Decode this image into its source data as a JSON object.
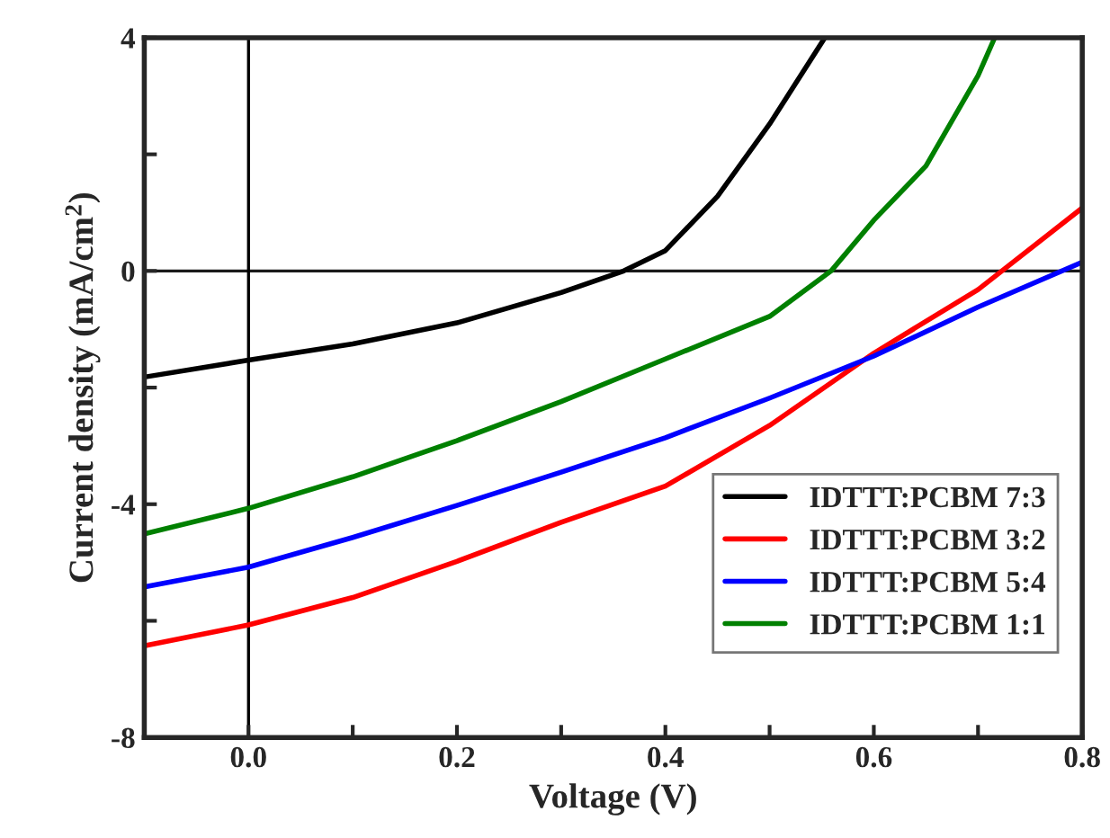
{
  "chart_data": {
    "type": "line",
    "xlabel": "Voltage (V)",
    "ylabel": "Current density (mA/cm$^{2}$)",
    "xlim": [
      -0.1,
      0.8
    ],
    "ylim": [
      -8,
      4
    ],
    "xticks": [
      {
        "value": -0.1,
        "label": null
      },
      {
        "value": 0,
        "label": "0.0"
      },
      {
        "value": 0.1,
        "label": null
      },
      0.2,
      {
        "value": 0.3,
        "label": null
      },
      0.4,
      {
        "value": 0.5,
        "label": null
      },
      0.6,
      {
        "value": 0.7,
        "label": null
      },
      0.8
    ],
    "yticks": [
      -8,
      {
        "value": -6,
        "label": null
      },
      -4,
      {
        "value": -2,
        "label": null
      },
      0,
      {
        "value": 2,
        "label": null
      },
      4
    ],
    "ref_lines": [
      {
        "axis": "y",
        "value": 0,
        "color": "#1a1a1a"
      },
      {
        "axis": "x",
        "value": 0,
        "color": "#000000"
      }
    ],
    "legend": "bottom right",
    "grid": false,
    "marker": "none",
    "line_style": "solid",
    "series": [
      {
        "name": "IDTTT:PCBM 7:3",
        "color": "#000000",
        "x": [
          -0.1,
          0,
          0.1,
          0.2,
          0.3,
          0.36,
          0.4,
          0.45,
          0.5,
          0.553
        ],
        "values": [
          -1.82,
          -1.53,
          -1.25,
          -0.89,
          -0.37,
          0,
          0.35,
          1.28,
          2.52,
          4
        ]
      },
      {
        "name": "IDTTT:PCBM 3:2",
        "color": "#ff0000",
        "x": [
          -0.1,
          0,
          0.1,
          0.2,
          0.3,
          0.4,
          0.5,
          0.6,
          0.7,
          0.8
        ],
        "values": [
          -6.43,
          -6.07,
          -5.6,
          -4.98,
          -4.31,
          -3.69,
          -2.65,
          -1.41,
          -0.32,
          1.08
        ]
      },
      {
        "name": "IDTTT:PCBM 5:4",
        "color": "#0000ff",
        "x": [
          -0.1,
          0,
          0.1,
          0.2,
          0.3,
          0.4,
          0.5,
          0.6,
          0.7,
          0.8
        ],
        "values": [
          -5.42,
          -5.08,
          -4.57,
          -4.02,
          -3.45,
          -2.86,
          -2.18,
          -1.46,
          -0.62,
          0.15
        ]
      },
      {
        "name": "IDTTT:PCBM 1:1",
        "color": "#008000",
        "x": [
          -0.1,
          0,
          0.1,
          0.2,
          0.3,
          0.4,
          0.5,
          0.559,
          0.6,
          0.65,
          0.7,
          0.716
        ],
        "values": [
          -4.51,
          -4.07,
          -3.53,
          -2.91,
          -2.24,
          -1.51,
          -0.78,
          0,
          0.87,
          1.8,
          3.35,
          4
        ]
      }
    ]
  }
}
